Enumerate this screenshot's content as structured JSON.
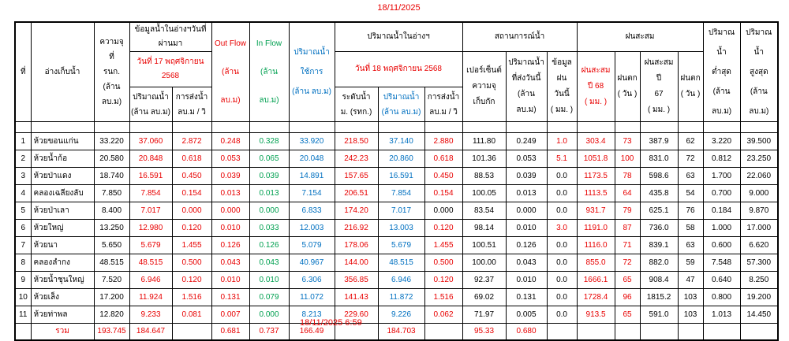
{
  "title_date": "18/11/2025",
  "footer_datetime": "18/11/2025 6:59",
  "colors": {
    "black": "#000000",
    "red": "#e80000",
    "green": "#00a050",
    "blue": "#0070c0"
  },
  "header": {
    "no": "ที่",
    "reservoir": "อ่างเก็บน้ำ",
    "capacity": [
      "ความจุ",
      "ที่",
      "รนก.",
      "(ล้าน ลบ.ม)"
    ],
    "prev_group": "ข้อมูลน้ำในอ่างฯวันที่ผ่านมา",
    "prev_date": "วันที่ 17 พฤศจิกายน 2568",
    "prev_vol": [
      "ปริมาณน้ำ",
      "(ล้าน ลบ.ม)"
    ],
    "prev_discharge": [
      "การส่งน้ำ",
      "ลบ.ม / วิ"
    ],
    "out_flow": [
      "Out Flow",
      "(ล้าน ลบ.ม)"
    ],
    "in_flow": [
      "In Flow",
      "(ล้าน ลบ.ม)"
    ],
    "usable": [
      "ปริมาณน้ำ",
      "ใช้การ",
      "(ล้าน ลบ.ม)"
    ],
    "today_group": "ปริมาณน้ำในอ่างฯ",
    "today_date": "วันที่ 18 พฤศจิกายน 2568",
    "today_level": [
      "ระดับน้ำ",
      "ม. (รทก.)"
    ],
    "today_vol": [
      "ปริมาณน้ำ",
      "(ล้าน ลบ.ม)"
    ],
    "today_discharge": [
      "การส่งน้ำ",
      "ลบ.ม / วิ"
    ],
    "situation_group": "สถานการณ์น้ำ",
    "pct_capacity": [
      "เปอร์เซ็นต์",
      "ความจุ",
      "เก็บกัก"
    ],
    "sent_today": [
      "ปริมาณน้ำ",
      "ที่ส่งวันนี้",
      "(ล้าน ลบ.ม)"
    ],
    "rain_today": [
      "ข้อมูลฝน",
      "วันนี้",
      "( มม. )"
    ],
    "rain_group": "ฝนสะสม",
    "rain_accum_68": [
      "ฝนสะสม",
      "ปี 68",
      "( มม. )"
    ],
    "rain_days_68": [
      "ฝนตก",
      "( วัน )"
    ],
    "rain_accum_67": [
      "ฝนสะสม ปี",
      "67",
      "( มม. )"
    ],
    "rain_days_67": [
      "ฝนตก",
      "( วัน )"
    ],
    "vol_min": [
      "ปริมาณน้ำ",
      "ต่ำสุด",
      "(ล้าน ลบ.ม)"
    ],
    "vol_max": [
      "ปริมาณน้ำ",
      "สูงสุด",
      "(ล้าน ลบ.ม)"
    ]
  },
  "table": {
    "columns": [
      {
        "key": "no",
        "color": "black",
        "width": 20
      },
      {
        "key": "name",
        "color": "black",
        "width": 80,
        "align": "left"
      },
      {
        "key": "capacity",
        "color": "black",
        "width": 45
      },
      {
        "key": "vol_prev",
        "color": "red",
        "width": 54
      },
      {
        "key": "discharge_prev",
        "color": "red",
        "width": 50
      },
      {
        "key": "out_flow",
        "color": "red",
        "width": 48
      },
      {
        "key": "in_flow",
        "color": "green",
        "width": 50
      },
      {
        "key": "usable",
        "color": "blue",
        "width": 58
      },
      {
        "key": "level",
        "color": "red",
        "width": 55
      },
      {
        "key": "vol_today",
        "color": "blue",
        "width": 59
      },
      {
        "key": "discharge_today",
        "color": "red",
        "width": 48
      },
      {
        "key": "pct_capacity",
        "color": "black",
        "width": 55
      },
      {
        "key": "sent_today",
        "color": "black",
        "width": 52
      },
      {
        "key": "rain_today",
        "color": "black",
        "width": 38
      },
      {
        "key": "rain_accum_68",
        "color": "red",
        "width": 48
      },
      {
        "key": "rain_days_68",
        "color": "red",
        "width": 32
      },
      {
        "key": "rain_accum_67",
        "color": "black",
        "width": 48
      },
      {
        "key": "rain_days_67",
        "color": "black",
        "width": 32
      },
      {
        "key": "vol_min",
        "color": "black",
        "width": 47
      },
      {
        "key": "vol_max",
        "color": "black",
        "width": 48
      }
    ],
    "rows": [
      [
        "1",
        "ห้วยขอนแก่น",
        "33.220",
        "37.060",
        "2.872",
        "0.248",
        "0.328",
        "33.920",
        "218.50",
        "37.140",
        "2.880",
        "111.80",
        "0.249",
        "1.0",
        "303.4",
        "73",
        "387.9",
        "62",
        "3.220",
        "39.500"
      ],
      [
        "2",
        "ห้วยน้ำก้อ",
        "20.580",
        "20.848",
        "0.618",
        "0.053",
        "0.065",
        "20.048",
        "242.23",
        "20.860",
        "0.618",
        "101.36",
        "0.053",
        "5.1",
        "1051.8",
        "100",
        "831.0",
        "72",
        "0.812",
        "23.250"
      ],
      [
        "3",
        "ห้วยป่าแดง",
        "18.740",
        "16.591",
        "0.450",
        "0.039",
        "0.039",
        "14.891",
        "157.65",
        "16.591",
        "0.450",
        "88.53",
        "0.039",
        "0.0",
        "1173.5",
        "78",
        "598.6",
        "63",
        "1.700",
        "22.060"
      ],
      [
        "4",
        "คลองเฉลียงลับ",
        "7.850",
        "7.854",
        "0.154",
        "0.013",
        "0.013",
        "7.154",
        "206.51",
        "7.854",
        "0.154",
        "100.05",
        "0.013",
        "0.0",
        "1113.5",
        "64",
        "435.8",
        "54",
        "0.700",
        "9.000"
      ],
      [
        "5",
        "ห้วยป่าเลา",
        "8.400",
        "7.017",
        "0.000",
        "0.000",
        "0.000",
        "6.833",
        "174.20",
        "7.017",
        "0.000",
        "83.54",
        "0.000",
        "0.0",
        "931.7",
        "79",
        "625.1",
        "76",
        "0.184",
        "9.870"
      ],
      [
        "6",
        "ห้วยใหญ่",
        "13.250",
        "12.980",
        "0.120",
        "0.010",
        "0.033",
        "12.003",
        "216.92",
        "13.003",
        "0.120",
        "98.14",
        "0.010",
        "3.0",
        "1191.0",
        "87",
        "736.0",
        "58",
        "1.000",
        "17.000"
      ],
      [
        "7",
        "ห้วยนา",
        "5.650",
        "5.679",
        "1.455",
        "0.126",
        "0.126",
        "5.079",
        "178.06",
        "5.679",
        "1.455",
        "100.51",
        "0.126",
        "0.0",
        "1116.0",
        "71",
        "839.1",
        "63",
        "0.600",
        "6.620"
      ],
      [
        "8",
        "คลองลำกง",
        "48.515",
        "48.515",
        "0.500",
        "0.043",
        "0.043",
        "40.967",
        "144.00",
        "48.515",
        "0.500",
        "100.00",
        "0.043",
        "0.0",
        "855.0",
        "72",
        "882.0",
        "59",
        "7.548",
        "57.300"
      ],
      [
        "9",
        "ห้วยน้ำชุนใหญ่",
        "7.520",
        "6.946",
        "0.120",
        "0.010",
        "0.010",
        "6.306",
        "356.85",
        "6.946",
        "0.120",
        "92.37",
        "0.010",
        "0.0",
        "1666.1",
        "65",
        "908.4",
        "47",
        "0.640",
        "8.250"
      ],
      [
        "10",
        "ห้วยเล็ง",
        "17.200",
        "11.924",
        "1.516",
        "0.131",
        "0.079",
        "11.072",
        "141.43",
        "11.872",
        "1.516",
        "69.02",
        "0.131",
        "0.0",
        "1728.4",
        "96",
        "1815.2",
        "103",
        "0.800",
        "19.200"
      ],
      [
        "11",
        "ห้วยท่าพล",
        "12.820",
        "9.233",
        "0.081",
        "0.007",
        "0.000",
        "8.213",
        "229.60",
        "9.226",
        "0.062",
        "71.97",
        "0.005",
        "0.0",
        "913.5",
        "65",
        "591.0",
        "103",
        "1.013",
        "14.450"
      ]
    ],
    "color_overrides": {
      "0-rain_today": "red",
      "1-rain_today": "red",
      "5-rain_today": "red",
      "4-discharge_today": "black"
    },
    "total_row": [
      "",
      "รวม",
      "193.745",
      "184.647",
      "",
      "0.681",
      "0.737",
      "166.49",
      "",
      "184.703",
      "",
      "95.33",
      "0.680",
      "",
      "",
      "",
      "",
      "",
      "",
      ""
    ]
  }
}
